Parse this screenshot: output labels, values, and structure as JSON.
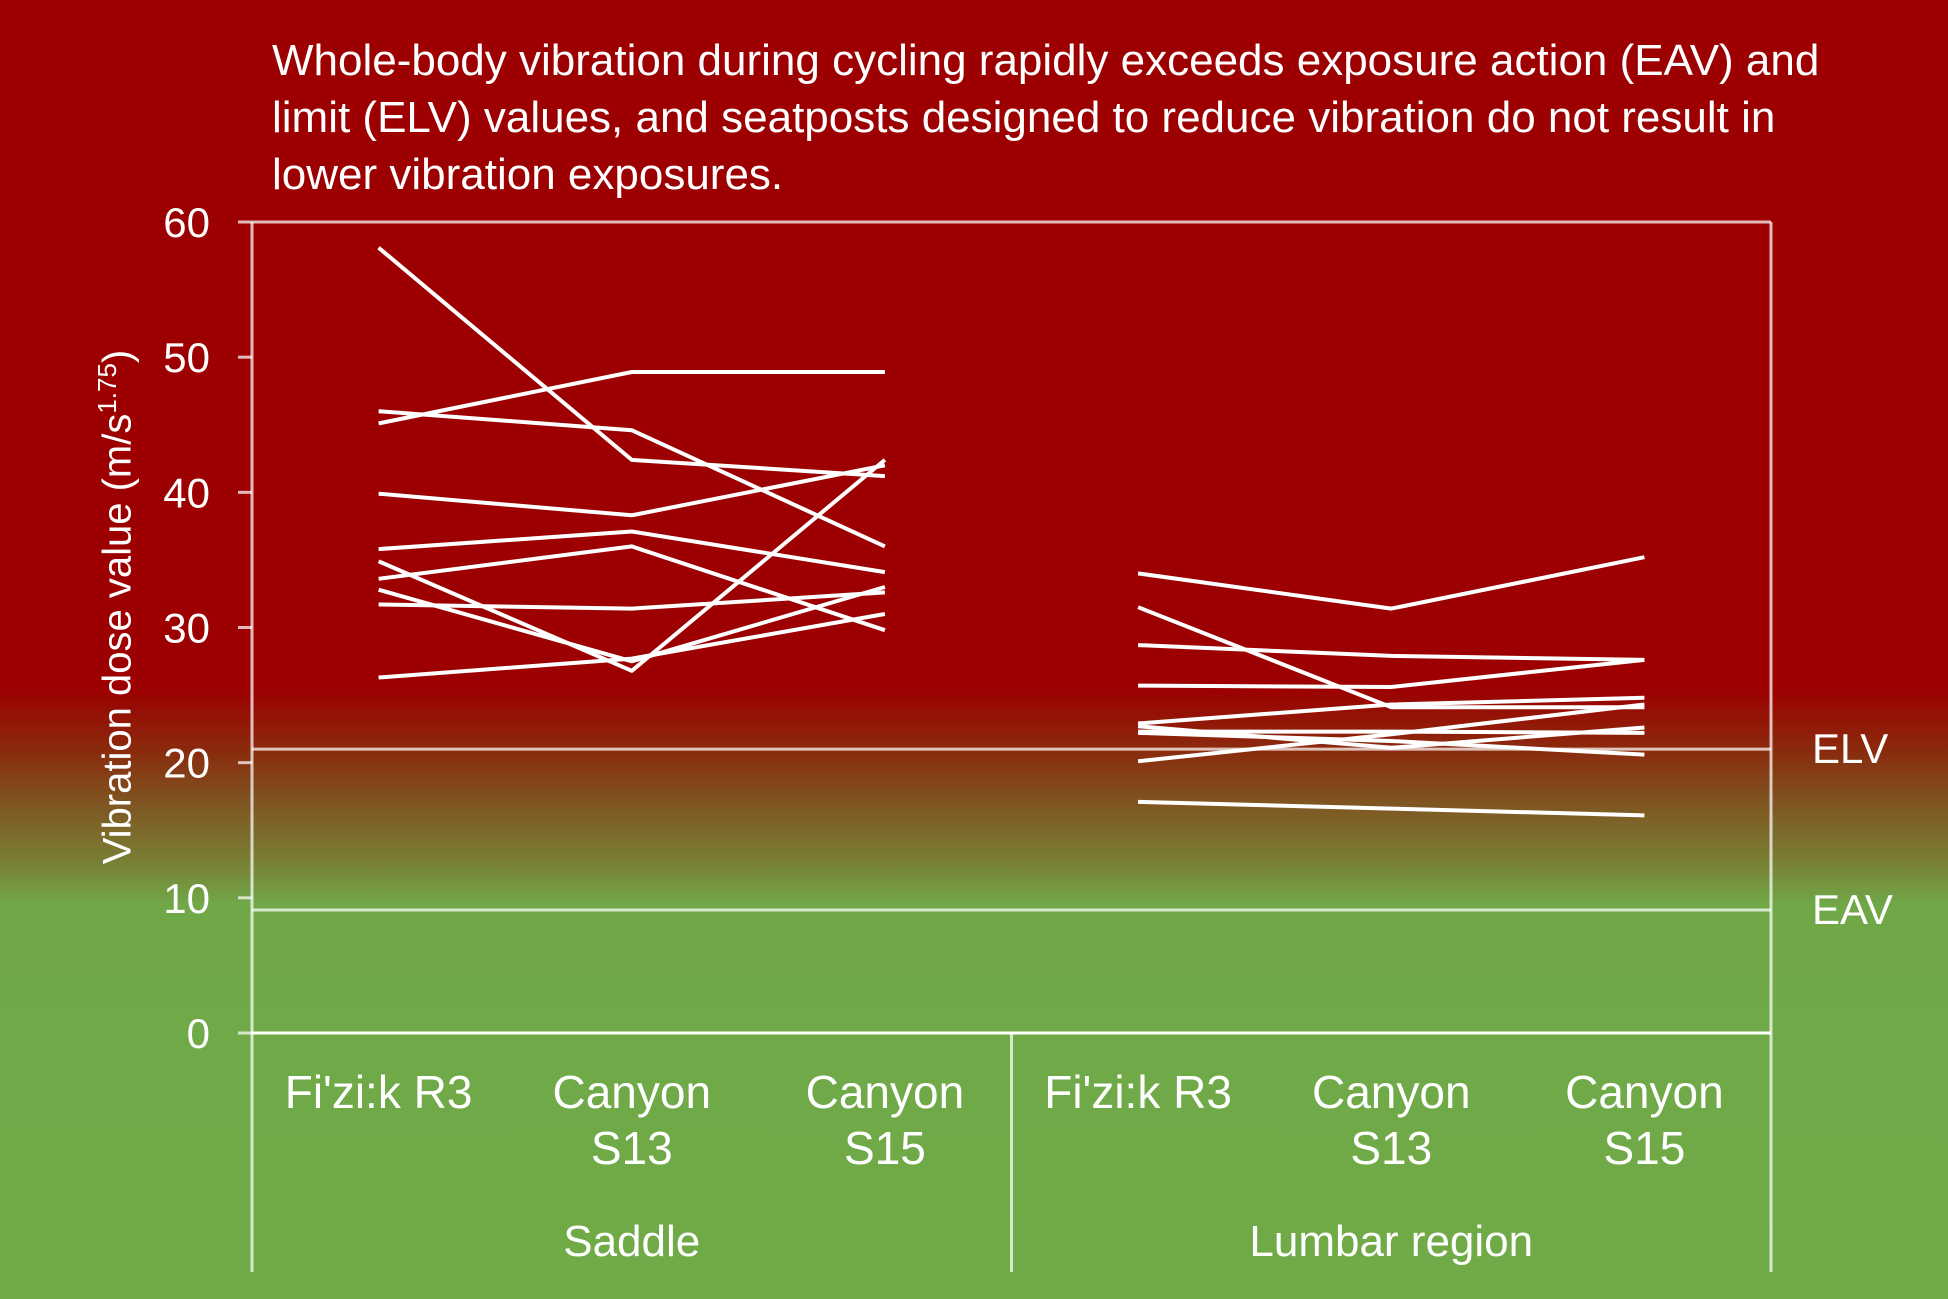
{
  "title": "Whole-body vibration during cycling rapidly exceeds exposure action (EAV) and limit (ELV) values, and seatposts designed to reduce vibration do not result in lower vibration exposures.",
  "colors": {
    "background_top": "#9c0000",
    "background_bottom": "#70ab47",
    "lines": "#ffffff"
  },
  "chart_data": {
    "type": "line",
    "title": "Whole-body vibration during cycling rapidly exceeds exposure action (EAV) and limit (ELV) values, and seatposts designed to reduce vibration do not result in lower vibration exposures.",
    "ylabel": "Vibration dose value (m/s1.75)",
    "ylabel_main": "Vibration dose value (m/s",
    "ylabel_sup": "1.75",
    "ylabel_close": ")",
    "ylim": [
      0,
      60
    ],
    "yticks": [
      0,
      10,
      20,
      30,
      40,
      50,
      60
    ],
    "grid": false,
    "categories": [
      "Fi'zi:k R3",
      "Canyon S13",
      "Canyon S15",
      "Fi'zi:k R3",
      "Canyon S13",
      "Canyon S15"
    ],
    "category_lines": [
      [
        "Fi'zi:k R3"
      ],
      [
        "Canyon",
        "S13"
      ],
      [
        "Canyon",
        "S15"
      ],
      [
        "Fi'zi:k R3"
      ],
      [
        "Canyon",
        "S13"
      ],
      [
        "Canyon",
        "S15"
      ]
    ],
    "groups": [
      {
        "name": "Saddle",
        "categories": [
          "Fi'zi:k R3",
          "Canyon S13",
          "Canyon S15"
        ]
      },
      {
        "name": "Lumbar region",
        "categories": [
          "Fi'zi:k R3",
          "Canyon S13",
          "Canyon S15"
        ]
      }
    ],
    "reference_lines": [
      {
        "label": "ELV",
        "value": 21
      },
      {
        "label": "EAV",
        "value": 9.1
      }
    ],
    "series_groups": [
      {
        "group": "Saddle",
        "series": [
          {
            "values": [
              58.1,
              42.4,
              41.2
            ]
          },
          {
            "values": [
              45.1,
              48.9,
              48.9
            ]
          },
          {
            "values": [
              46.0,
              44.6,
              36.0
            ]
          },
          {
            "values": [
              39.9,
              38.3,
              42.0
            ]
          },
          {
            "values": [
              35.8,
              37.1,
              34.1
            ]
          },
          {
            "values": [
              33.6,
              36.0,
              29.8
            ]
          },
          {
            "values": [
              31.7,
              31.4,
              32.6
            ]
          },
          {
            "values": [
              32.8,
              27.5,
              33.0
            ]
          },
          {
            "values": [
              34.9,
              26.8,
              42.4
            ]
          },
          {
            "values": [
              26.3,
              27.7,
              31.0
            ]
          }
        ]
      },
      {
        "group": "Lumbar region",
        "series": [
          {
            "values": [
              34.0,
              31.4,
              35.2
            ]
          },
          {
            "values": [
              31.5,
              24.1,
              24.1
            ]
          },
          {
            "values": [
              28.7,
              27.9,
              27.6
            ]
          },
          {
            "values": [
              25.7,
              25.6,
              27.6
            ]
          },
          {
            "values": [
              22.9,
              24.3,
              24.8
            ]
          },
          {
            "values": [
              22.7,
              21.1,
              22.6
            ]
          },
          {
            "values": [
              22.3,
              22.3,
              22.2
            ]
          },
          {
            "values": [
              22.2,
              21.6,
              20.6
            ]
          },
          {
            "values": [
              20.1,
              22.1,
              24.3
            ]
          },
          {
            "values": [
              17.1,
              16.6,
              16.1
            ]
          }
        ]
      }
    ]
  }
}
